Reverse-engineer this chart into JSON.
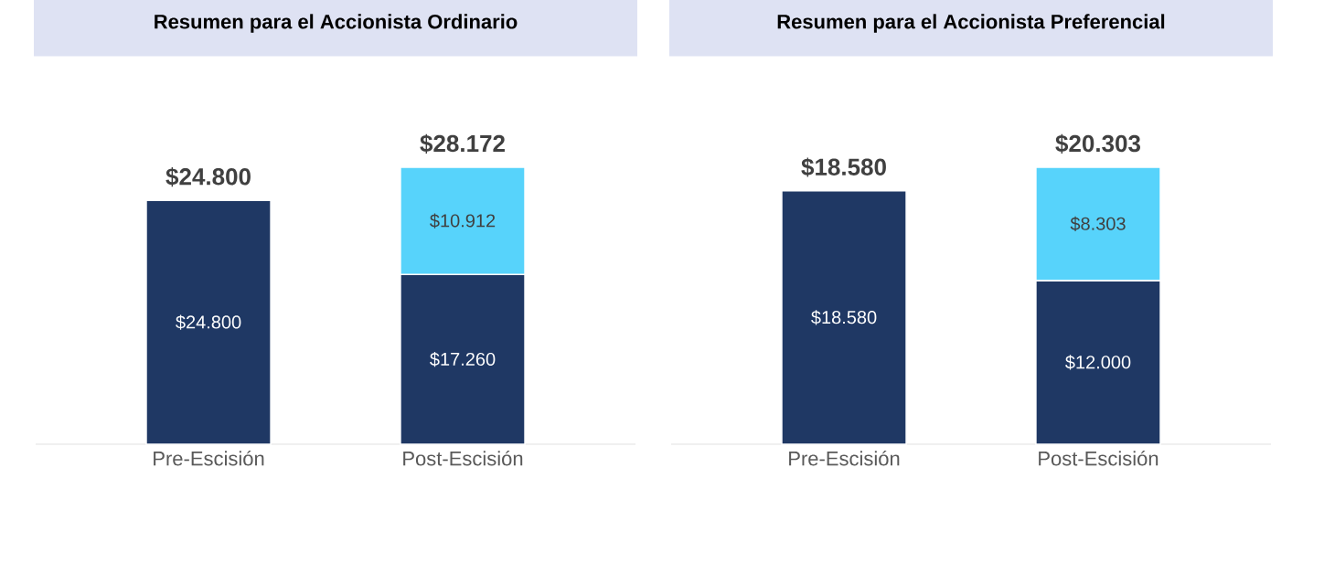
{
  "chart_data": [
    {
      "type": "bar",
      "stacked": true,
      "title": "Resumen para el Accionista Ordinario",
      "categories": [
        "Pre-Escisión",
        "Post-Escisión"
      ],
      "series": [
        {
          "color": "#1f3864",
          "values": [
            24800,
            17260
          ],
          "value_labels": [
            "$24.800",
            "$17.260"
          ]
        },
        {
          "color": "#57d3fb",
          "values": [
            null,
            10912
          ],
          "value_labels": [
            null,
            "$10.912"
          ]
        }
      ],
      "totals": [
        "$24.800",
        "$28.172"
      ]
    },
    {
      "type": "bar",
      "stacked": true,
      "title": "Resumen para el Accionista Preferencial",
      "categories": [
        "Pre-Escisión",
        "Post-Escisión"
      ],
      "series": [
        {
          "color": "#1f3864",
          "values": [
            18580,
            12000
          ],
          "value_labels": [
            "$18.580",
            "$12.000"
          ]
        },
        {
          "color": "#57d3fb",
          "values": [
            null,
            8303
          ],
          "value_labels": [
            null,
            "$8.303"
          ]
        }
      ],
      "totals": [
        "$18.580",
        "$20.303"
      ]
    }
  ]
}
